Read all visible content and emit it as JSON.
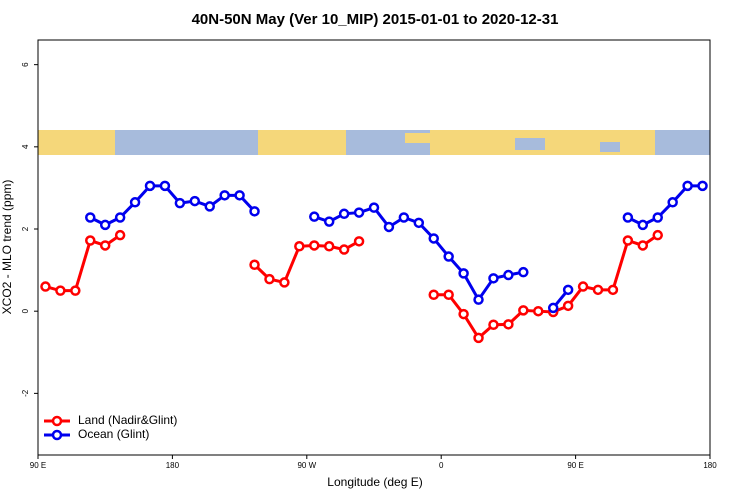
{
  "chart_data": {
    "type": "line",
    "title": "40N-50N May (Ver 10_MIP)   2015-01-01 to 2020-12-31",
    "x_label": "Longitude (deg E)",
    "y_label": "XCO2 - MLO trend (ppm)",
    "x": [
      95,
      105,
      115,
      125,
      135,
      145,
      155,
      165,
      175,
      185,
      195,
      205,
      215,
      225,
      235,
      245,
      255,
      265,
      275,
      285,
      295,
      305,
      315,
      325,
      335,
      345,
      355,
      365,
      375,
      385,
      395,
      405,
      415,
      425,
      435,
      445,
      455,
      465,
      475,
      485,
      495,
      505,
      515,
      525,
      535
    ],
    "series": [
      {
        "name": "Land (Nadir&Glint)",
        "color": "#ff0000",
        "values": [
          0.6,
          0.5,
          0.5,
          1.72,
          1.6,
          1.85,
          null,
          null,
          null,
          null,
          null,
          null,
          null,
          null,
          1.13,
          0.78,
          0.7,
          1.58,
          1.6,
          1.58,
          1.5,
          1.7,
          null,
          null,
          null,
          null,
          0.4,
          0.4,
          -0.07,
          -0.65,
          -0.33,
          -0.32,
          0.02,
          0.0,
          -0.02,
          0.13,
          0.6,
          0.52,
          0.52,
          1.72,
          1.6,
          1.85,
          null,
          null,
          null
        ]
      },
      {
        "name": "Ocean (Glint)",
        "color": "#0000ee",
        "values": [
          null,
          null,
          null,
          2.28,
          2.1,
          2.28,
          2.65,
          3.05,
          3.05,
          2.63,
          2.68,
          2.55,
          2.82,
          2.82,
          2.43,
          null,
          null,
          null,
          2.3,
          2.18,
          2.37,
          2.4,
          2.52,
          2.05,
          2.28,
          2.15,
          1.77,
          1.33,
          0.92,
          0.28,
          0.8,
          0.88,
          0.95,
          null,
          0.08,
          0.52,
          null,
          null,
          null,
          2.28,
          2.1,
          2.28,
          2.65,
          3.05,
          3.05
        ]
      }
    ],
    "xlim": [
      90,
      540
    ],
    "xticks": [
      {
        "value": 90,
        "label": "90 E"
      },
      180,
      {
        "value": 270,
        "label": "90 W"
      },
      {
        "value": 360,
        "label": "0"
      },
      {
        "value": 450,
        "label": "90 E"
      },
      {
        "value": 540,
        "label": "180"
      }
    ],
    "ylim": [
      -3.5,
      6.6
    ],
    "yticks": [
      -2,
      0,
      2,
      4,
      6
    ],
    "legend": "bottom-left"
  }
}
